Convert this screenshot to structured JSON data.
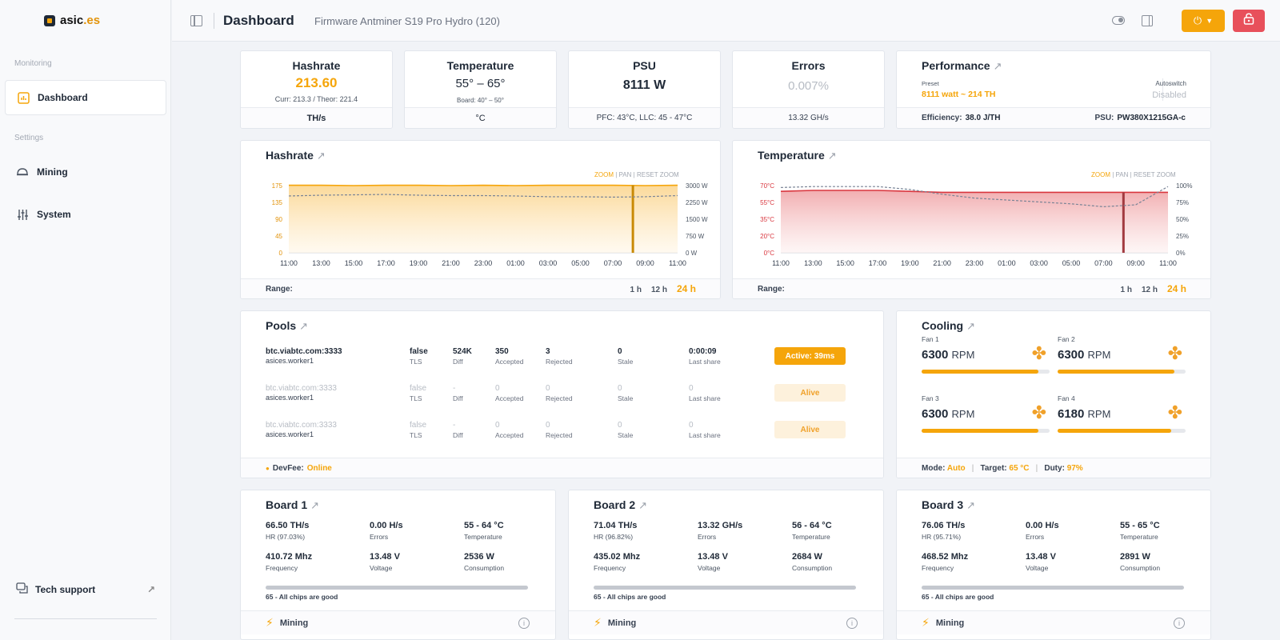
{
  "sidebar": {
    "logo": {
      "name": "asic",
      "tld": ".es"
    },
    "sections": {
      "monitoring": "Monitoring",
      "settings": "Settings"
    },
    "items": {
      "dashboard": "Dashboard",
      "mining": "Mining",
      "system": "System"
    },
    "tech_support": "Tech support"
  },
  "topbar": {
    "title": "Dashboard",
    "firmware": "Firmware Antminer S19 Pro Hydro (120)",
    "power_symbol": "⏻"
  },
  "stats": {
    "hashrate": {
      "title": "Hashrate",
      "value": "213.60",
      "sub": "Curr: 213.3 / Theor: 221.4",
      "unit": "TH/s"
    },
    "temperature": {
      "title": "Temperature",
      "value": "55° – 65°",
      "sub": "Board: 40° – 50°",
      "unit": "°C"
    },
    "psu": {
      "title": "PSU",
      "value": "8111 W",
      "foot": "PFC: 43°C, LLC: 45 - 47°C"
    },
    "errors": {
      "title": "Errors",
      "value": "0.007%",
      "foot": "13.32 GH/s"
    },
    "performance": {
      "title": "Performance",
      "preset_label": "Preset",
      "preset_value": "8111 watt ~ 214 TH",
      "autoswitch_label": "Autoswitch",
      "autoswitch_value": "Disabled",
      "efficiency_label": "Efficiency:",
      "efficiency_value": "38.0 J/TH",
      "psu_label": "PSU:",
      "psu_value": "PW380X1215GA-c"
    }
  },
  "zoom_controls": {
    "zoom": "ZOOM",
    "sep": "|",
    "pan": "PAN",
    "reset": "RESET ZOOM"
  },
  "range": {
    "label": "Range:",
    "options": [
      "1 h",
      "12 h",
      "24 h"
    ],
    "selected": "24 h"
  },
  "chart_data": [
    {
      "type": "area",
      "title": "Hashrate",
      "x": [
        "11:00",
        "13:00",
        "15:00",
        "17:00",
        "19:00",
        "21:00",
        "23:00",
        "01:00",
        "03:00",
        "05:00",
        "07:00",
        "09:00",
        "11:00"
      ],
      "y_left_ticks": [
        "175",
        "135",
        "90",
        "45",
        "0"
      ],
      "y_right_ticks": [
        "3000 W",
        "2250 W",
        "1500 W",
        "750 W",
        "0 W"
      ],
      "ylim": [
        0,
        175
      ],
      "series": [
        {
          "values": [
            176,
            176,
            175,
            176,
            176,
            175,
            176,
            175,
            176,
            176,
            176,
            175,
            176
          ]
        },
        {
          "values": [
            148,
            150,
            151,
            152,
            150,
            149,
            149,
            148,
            146,
            146,
            145,
            146,
            149
          ]
        }
      ],
      "colors": {
        "hashrate": "#f5a50a",
        "power": "#7a8496"
      }
    },
    {
      "type": "area",
      "title": "Temperature",
      "x": [
        "11:00",
        "13:00",
        "15:00",
        "17:00",
        "19:00",
        "21:00",
        "23:00",
        "01:00",
        "03:00",
        "05:00",
        "07:00",
        "09:00",
        "11:00"
      ],
      "y_left_ticks": [
        "70°C",
        "55°C",
        "35°C",
        "20°C",
        "0°C"
      ],
      "y_right_ticks": [
        "100%",
        "75%",
        "50%",
        "25%",
        "0%"
      ],
      "ylim": [
        0,
        70
      ],
      "series": [
        {
          "values": [
            64,
            65,
            65,
            65,
            64,
            63,
            63,
            63,
            63,
            63,
            63,
            63,
            63
          ]
        },
        {
          "values": [
            68,
            69,
            69,
            69,
            66,
            61,
            57,
            55,
            53,
            51,
            48,
            50,
            69
          ]
        }
      ],
      "colors": {
        "temperature": "#d9363e",
        "duty": "#7a8496"
      }
    }
  ],
  "pools": {
    "title": "Pools",
    "labels": {
      "tls": "TLS",
      "diff": "Diff",
      "accepted": "Accepted",
      "rejected": "Rejected",
      "stale": "Stale",
      "last": "Last share"
    },
    "rows": [
      {
        "url": "btc.viabtc.com:3333",
        "worker": "asices.worker1",
        "tls": "false",
        "diff": "524K",
        "accepted": "350",
        "rejected": "3",
        "stale": "0",
        "last": "0:00:09",
        "status": "Active: 39ms"
      },
      {
        "url": "btc.viabtc.com:3333",
        "worker": "asices.worker1",
        "tls": "false",
        "diff": "-",
        "accepted": "0",
        "rejected": "0",
        "stale": "0",
        "last": "0",
        "status": "Alive"
      },
      {
        "url": "btc.viabtc.com:3333",
        "worker": "asices.worker1",
        "tls": "false",
        "diff": "-",
        "accepted": "0",
        "rejected": "0",
        "stale": "0",
        "last": "0",
        "status": "Alive"
      }
    ],
    "devfee_label": "DevFee:",
    "devfee_value": "Online"
  },
  "cooling": {
    "title": "Cooling",
    "unit": "RPM",
    "fans": [
      {
        "label": "Fan 1",
        "rpm": "6300",
        "level": 0.91
      },
      {
        "label": "Fan 2",
        "rpm": "6300",
        "level": 0.91
      },
      {
        "label": "Fan 3",
        "rpm": "6300",
        "level": 0.91
      },
      {
        "label": "Fan 4",
        "rpm": "6180",
        "level": 0.89
      }
    ],
    "mode_label": "Mode:",
    "mode_value": "Auto",
    "target_label": "Target:",
    "target_value": "65 °C",
    "duty_label": "Duty:",
    "duty_value": "97%"
  },
  "board_labels": {
    "hr": "HR",
    "errors": "Errors",
    "temperature": "Temperature",
    "frequency": "Frequency",
    "voltage": "Voltage",
    "consumption": "Consumption"
  },
  "boards": [
    {
      "title": "Board 1",
      "hashrate": "66.50 TH/s",
      "hr_pct": "HR (97.03%)",
      "errors": "0.00 H/s",
      "temp": "55 - 64 °C",
      "freq": "410.72 Mhz",
      "voltage": "13.48 V",
      "consumption": "2536 W",
      "chips": "65 - All chips are good",
      "status": "Mining"
    },
    {
      "title": "Board 2",
      "hashrate": "71.04 TH/s",
      "hr_pct": "HR (96.82%)",
      "errors": "13.32 GH/s",
      "temp": "56 - 64 °C",
      "freq": "435.02 Mhz",
      "voltage": "13.48 V",
      "consumption": "2684 W",
      "chips": "65 - All chips are good",
      "status": "Mining"
    },
    {
      "title": "Board 3",
      "hashrate": "76.06 TH/s",
      "hr_pct": "HR (95.71%)",
      "errors": "0.00 H/s",
      "temp": "55 - 65 °C",
      "freq": "468.52 Mhz",
      "voltage": "13.48 V",
      "consumption": "2891 W",
      "chips": "65 - All chips are good",
      "status": "Mining"
    }
  ]
}
